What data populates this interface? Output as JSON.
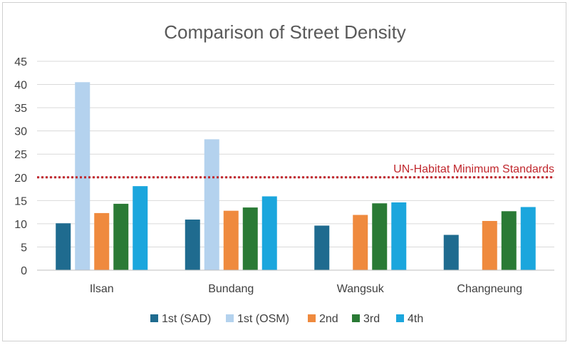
{
  "chart_data": {
    "type": "bar",
    "title": "Comparison of Street Density",
    "xlabel": "",
    "ylabel": "",
    "ylim": [
      0,
      45
    ],
    "yticks": [
      0,
      5,
      10,
      15,
      20,
      25,
      30,
      35,
      40,
      45
    ],
    "grid": true,
    "legend_position": "bottom",
    "categories": [
      "Ilsan",
      "Bundang",
      "Wangsuk",
      "Changneung"
    ],
    "series": [
      {
        "name": "1st (SAD)",
        "color": "#1f6b8f",
        "values": [
          10.1,
          10.9,
          9.6,
          7.6
        ]
      },
      {
        "name": "1st (OSM)",
        "color": "#b4d2ee",
        "values": [
          40.5,
          28.2,
          null,
          null
        ]
      },
      {
        "name": "2nd",
        "color": "#ef8a3e",
        "values": [
          12.3,
          12.8,
          11.9,
          10.6
        ]
      },
      {
        "name": "3rd",
        "color": "#2a7a35",
        "values": [
          14.3,
          13.5,
          14.4,
          12.7
        ]
      },
      {
        "name": "4th",
        "color": "#1ba6dd",
        "values": [
          18.1,
          15.9,
          14.6,
          13.6
        ]
      }
    ],
    "reference_line": {
      "value": 20,
      "label": "UN-Habitat Minimum Standards",
      "color": "#c0272d",
      "style": "dotted"
    }
  }
}
